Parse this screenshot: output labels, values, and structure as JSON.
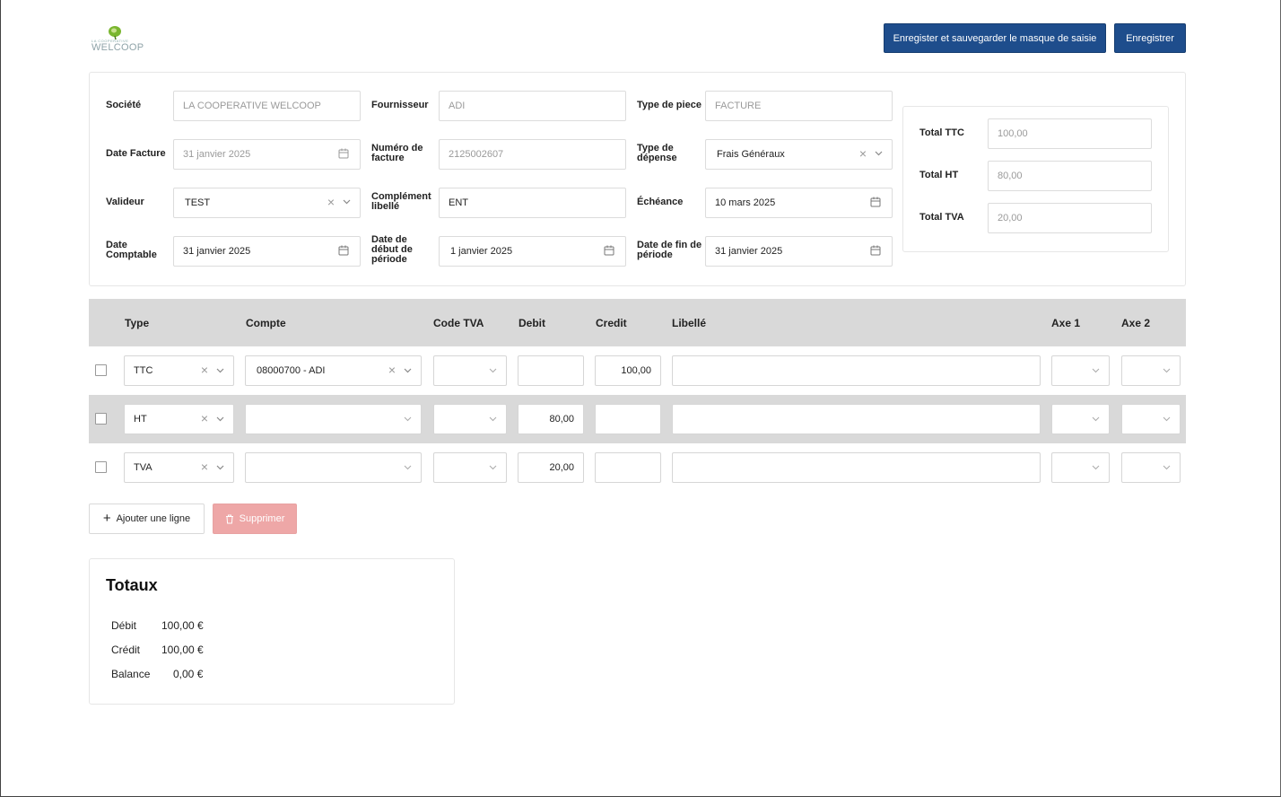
{
  "logo": {
    "tagline": "LA COOPERATIVE",
    "wordmark": "WELCOOP"
  },
  "actions": {
    "save_template": "Enregister et sauvegarder le masque de saisie",
    "save": "Enregistrer"
  },
  "form": {
    "societe": {
      "label": "Société",
      "value": "LA COOPERATIVE WELCOOP"
    },
    "fournisseur": {
      "label": "Fournisseur",
      "value": "ADI"
    },
    "type_piece": {
      "label": "Type de piece",
      "value": "FACTURE"
    },
    "date_facture": {
      "label": "Date Facture",
      "value": "31 janvier 2025"
    },
    "numero_facture": {
      "label1": "Numéro de",
      "label2": "facture",
      "value": "2125002607"
    },
    "type_depense": {
      "label1": "Type de",
      "label2": "dépense",
      "value": "Frais Généraux"
    },
    "valideur": {
      "label": "Valideur",
      "value": "TEST"
    },
    "complement": {
      "label1": "Complément",
      "label2": "libellé",
      "value": "ENT"
    },
    "echeance": {
      "label": "Échéance",
      "value": "10 mars 2025"
    },
    "date_comptable": {
      "label1": "Date",
      "label2": "Comptable",
      "value": "31 janvier 2025"
    },
    "date_debut": {
      "label1": "Date de",
      "label2": "début de",
      "label3": "période",
      "value": "1 janvier 2025"
    },
    "date_fin": {
      "label1": "Date de fin de",
      "label2": "période",
      "value": "31 janvier 2025"
    }
  },
  "totals_box": {
    "ttc": {
      "label": "Total TTC",
      "value": "100,00"
    },
    "ht": {
      "label": "Total HT",
      "value": "80,00"
    },
    "tva": {
      "label": "Total TVA",
      "value": "20,00"
    }
  },
  "table": {
    "headers": {
      "type": "Type",
      "compte": "Compte",
      "code_tva": "Code TVA",
      "debit": "Debit",
      "credit": "Credit",
      "libelle": "Libellé",
      "axe1": "Axe 1",
      "axe2": "Axe 2"
    },
    "rows": [
      {
        "type": "TTC",
        "compte": "08000700 - ADI",
        "code_tva": "",
        "debit": "",
        "credit": "100,00",
        "libelle": ""
      },
      {
        "type": "HT",
        "compte": "",
        "code_tva": "",
        "debit": "80,00",
        "credit": "",
        "libelle": ""
      },
      {
        "type": "TVA",
        "compte": "",
        "code_tva": "",
        "debit": "20,00",
        "credit": "",
        "libelle": ""
      }
    ]
  },
  "row_actions": {
    "add": "Ajouter une ligne",
    "delete": "Supprimer"
  },
  "summary": {
    "title": "Totaux",
    "debit": {
      "label": "Débit",
      "value": "100,00 €"
    },
    "credit": {
      "label": "Crédit",
      "value": "100,00 €"
    },
    "balance": {
      "label": "Balance",
      "value": "0,00 €"
    }
  }
}
